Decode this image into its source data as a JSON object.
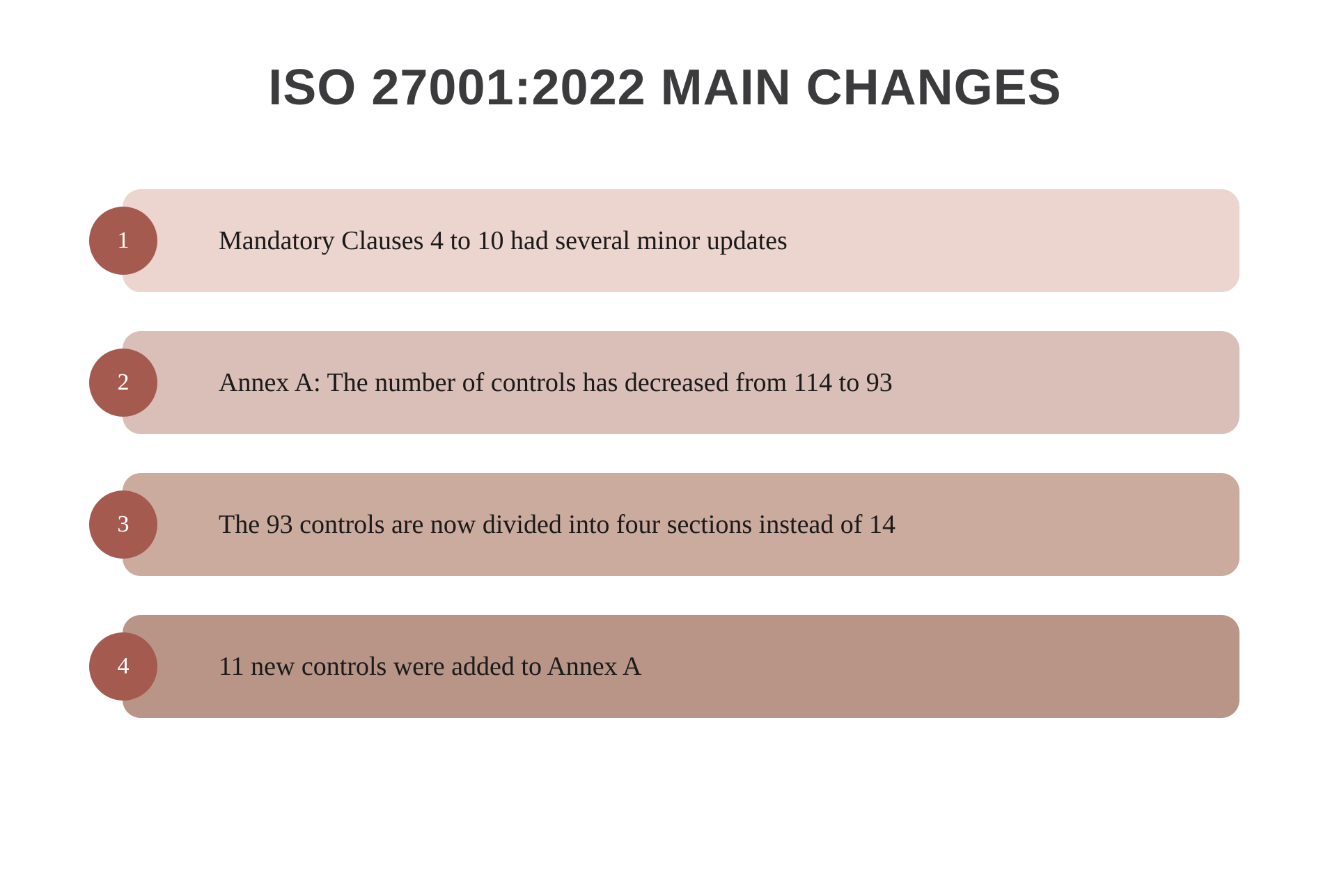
{
  "title": {
    "text": "ISO 27001:2022 MAIN CHANGES",
    "color": "#3b3b3d",
    "fontsize": 72
  },
  "badge_color": "#a45a4f",
  "badge_text_color": "#ffffff",
  "text_color": "#1a1a1a",
  "background_color": "#ffffff",
  "bar_border_radius": 26,
  "items": [
    {
      "number": "1",
      "label": "Mandatory Clauses 4 to 10 had several minor updates",
      "bar_color": "#ecd5ce"
    },
    {
      "number": "2",
      "label": "Annex A: The number of controls has decreased from 114 to 93",
      "bar_color": "#d9bfb7"
    },
    {
      "number": "3",
      "label": "The 93 controls are now divided into four sections instead of 14",
      "bar_color": "#ccab9f"
    },
    {
      "number": "4",
      "label": "11 new controls were added to Annex A",
      "bar_color": "#b99588"
    }
  ]
}
